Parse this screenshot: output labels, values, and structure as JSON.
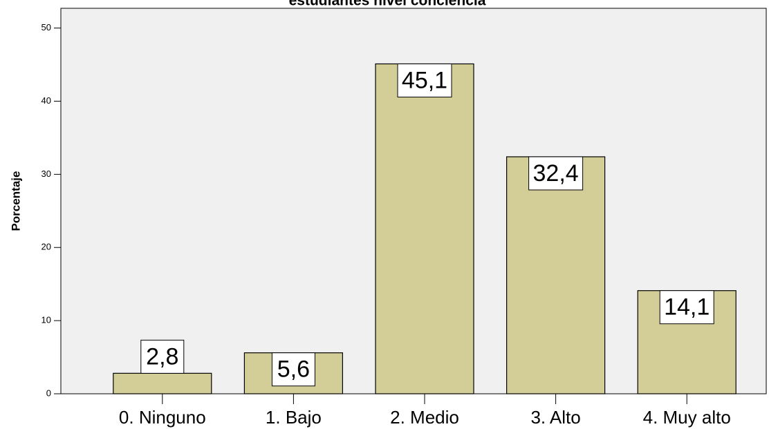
{
  "chart_data": {
    "type": "bar",
    "title": "estudiantes nivel conciencia",
    "y_label": "Porcentaje",
    "categories": [
      "0. Ninguno",
      "1. Bajo",
      "2. Medio",
      "3. Alto",
      "4. Muy alto"
    ],
    "values": [
      2.8,
      5.6,
      45.1,
      32.4,
      14.1
    ],
    "value_labels": [
      "2,8",
      "5,6",
      "45,1",
      "32,4",
      "14,1"
    ],
    "color": "#d3ce97",
    "ylim": [
      0,
      52.7
    ],
    "yticks": [
      0,
      10,
      20,
      30,
      40,
      50
    ],
    "grid": false
  }
}
